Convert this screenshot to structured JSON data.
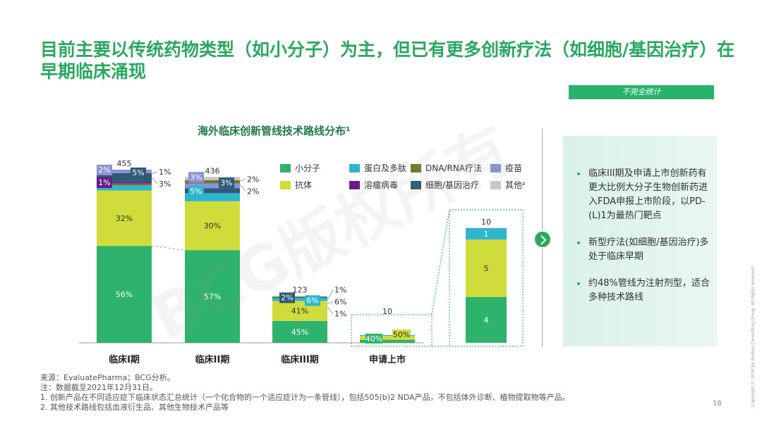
{
  "title": "目前主要以传统药物类型（如小分子）为主，但已有更多创新疗法（如细胞/基因治疗）在早期临床涌现",
  "badge": "不完全统计",
  "watermark": "BCG版权所有",
  "bullets": [
    "临床III期及申请上市创新药有更大比例大分子生物创新药进入FDA申报上市阶段，以PD-(L)1为最热门靶点",
    "新型疗法(如细胞/基因治疗)多处于临床早期",
    "约48%管线为注射剂型，适合多种技术路线"
  ],
  "notes": [
    "来源：EvaluatePharma；BCG分析。",
    "注：数据截至2021年12月31日。",
    "1. 创新产品在不同适应症下临床状态汇总统计（一个化合物的一个适应症计为一条管线），包括505(b)2 NDA产品，不包括体外诊断、植物提取物等产品。",
    "2. 其他技术路线包括血液衍生品、其他生物技术产品等"
  ],
  "page_number": "18",
  "copyright": "Copyright © 2020 by Boston Consulting Group. All rights reserved.",
  "colors": {
    "小分子": "#2db36b",
    "蛋白及多肽": "#2fb5d0",
    "DNA/RNA疗法": "#6e7a2a",
    "疫苗": "#8b93d4",
    "抗体": "#cfdc3b",
    "溶瘤病毒": "#6a1b8a",
    "细胞/基因治疗": "#2e5a78",
    "其他": "#c8c8c8"
  },
  "chart_data": {
    "type": "bar",
    "title": "海外临床创新管线技术路线分布¹",
    "legend": [
      {
        "name": "小分子",
        "key": "小分子"
      },
      {
        "name": "蛋白及多肽",
        "key": "蛋白及多肽"
      },
      {
        "name": "DNA/RNA疗法",
        "key": "DNA/RNA疗法"
      },
      {
        "name": "疫苗",
        "key": "疫苗"
      },
      {
        "name": "抗体",
        "key": "抗体"
      },
      {
        "name": "溶瘤病毒",
        "key": "溶瘤病毒"
      },
      {
        "name": "细胞/基因治疗",
        "key": "细胞/基因治疗"
      },
      {
        "name": "其他²",
        "key": "其他"
      }
    ],
    "categories": [
      "临床I期",
      "临床II期",
      "临床III期",
      "申请上市"
    ],
    "totals": [
      455,
      436,
      123,
      10
    ],
    "segments": [
      [
        {
          "series": "小分子",
          "pct": 56,
          "label": "56%"
        },
        {
          "series": "抗体",
          "pct": 32,
          "label": "32%"
        },
        {
          "series": "蛋白及多肽",
          "pct": 3,
          "label": "3%"
        },
        {
          "series": "DNA/RNA疗法",
          "pct": 1,
          "label": "1%"
        },
        {
          "series": "溶瘤病毒",
          "pct": 1,
          "label": "1%"
        },
        {
          "series": "细胞/基因治疗",
          "pct": 5,
          "label": "5%"
        },
        {
          "series": "疫苗",
          "pct": 2,
          "label": "2%"
        },
        {
          "series": "其他",
          "pct": 0,
          "label": ""
        }
      ],
      [
        {
          "series": "小分子",
          "pct": 57,
          "label": "57%"
        },
        {
          "series": "抗体",
          "pct": 30,
          "label": "30%"
        },
        {
          "series": "蛋白及多肽",
          "pct": 5,
          "label": "5%"
        },
        {
          "series": "细胞/基因治疗",
          "pct": 3,
          "label": "3%"
        },
        {
          "series": "疫苗",
          "pct": 3,
          "label": "3%"
        },
        {
          "series": "DNA/RNA疗法",
          "pct": 2,
          "label": "2%"
        },
        {
          "series": "其他",
          "pct": 2,
          "label": "2%"
        }
      ],
      [
        {
          "series": "小分子",
          "pct": 45,
          "label": "45%"
        },
        {
          "series": "抗体",
          "pct": 41,
          "label": "41%"
        },
        {
          "series": "蛋白及多肽",
          "pct": 6,
          "label": "6%"
        },
        {
          "series": "细胞/基因治疗",
          "pct": 2,
          "label": "2%"
        },
        {
          "series": "DNA/RNA疗法",
          "pct": 1,
          "label": "1%"
        },
        {
          "series": "其他",
          "pct": 1,
          "label": "1%"
        }
      ],
      [
        {
          "series": "小分子",
          "pct": 40,
          "label": "40%"
        },
        {
          "series": "抗体",
          "pct": 50,
          "label": "50%"
        },
        {
          "series": "蛋白及多肽",
          "pct": 10,
          "label": ""
        }
      ]
    ],
    "side_labels": [
      [
        "1%",
        "3%"
      ],
      [
        "2%",
        "2%"
      ],
      [
        "1%",
        "6%",
        "1%"
      ]
    ],
    "zoom": {
      "category": "申请上市",
      "total": 10,
      "segments": [
        {
          "series": "小分子",
          "value": 4,
          "label": "4"
        },
        {
          "series": "抗体",
          "value": 5,
          "label": "5"
        },
        {
          "series": "蛋白及多肽",
          "value": 1,
          "label": "1"
        }
      ]
    }
  }
}
